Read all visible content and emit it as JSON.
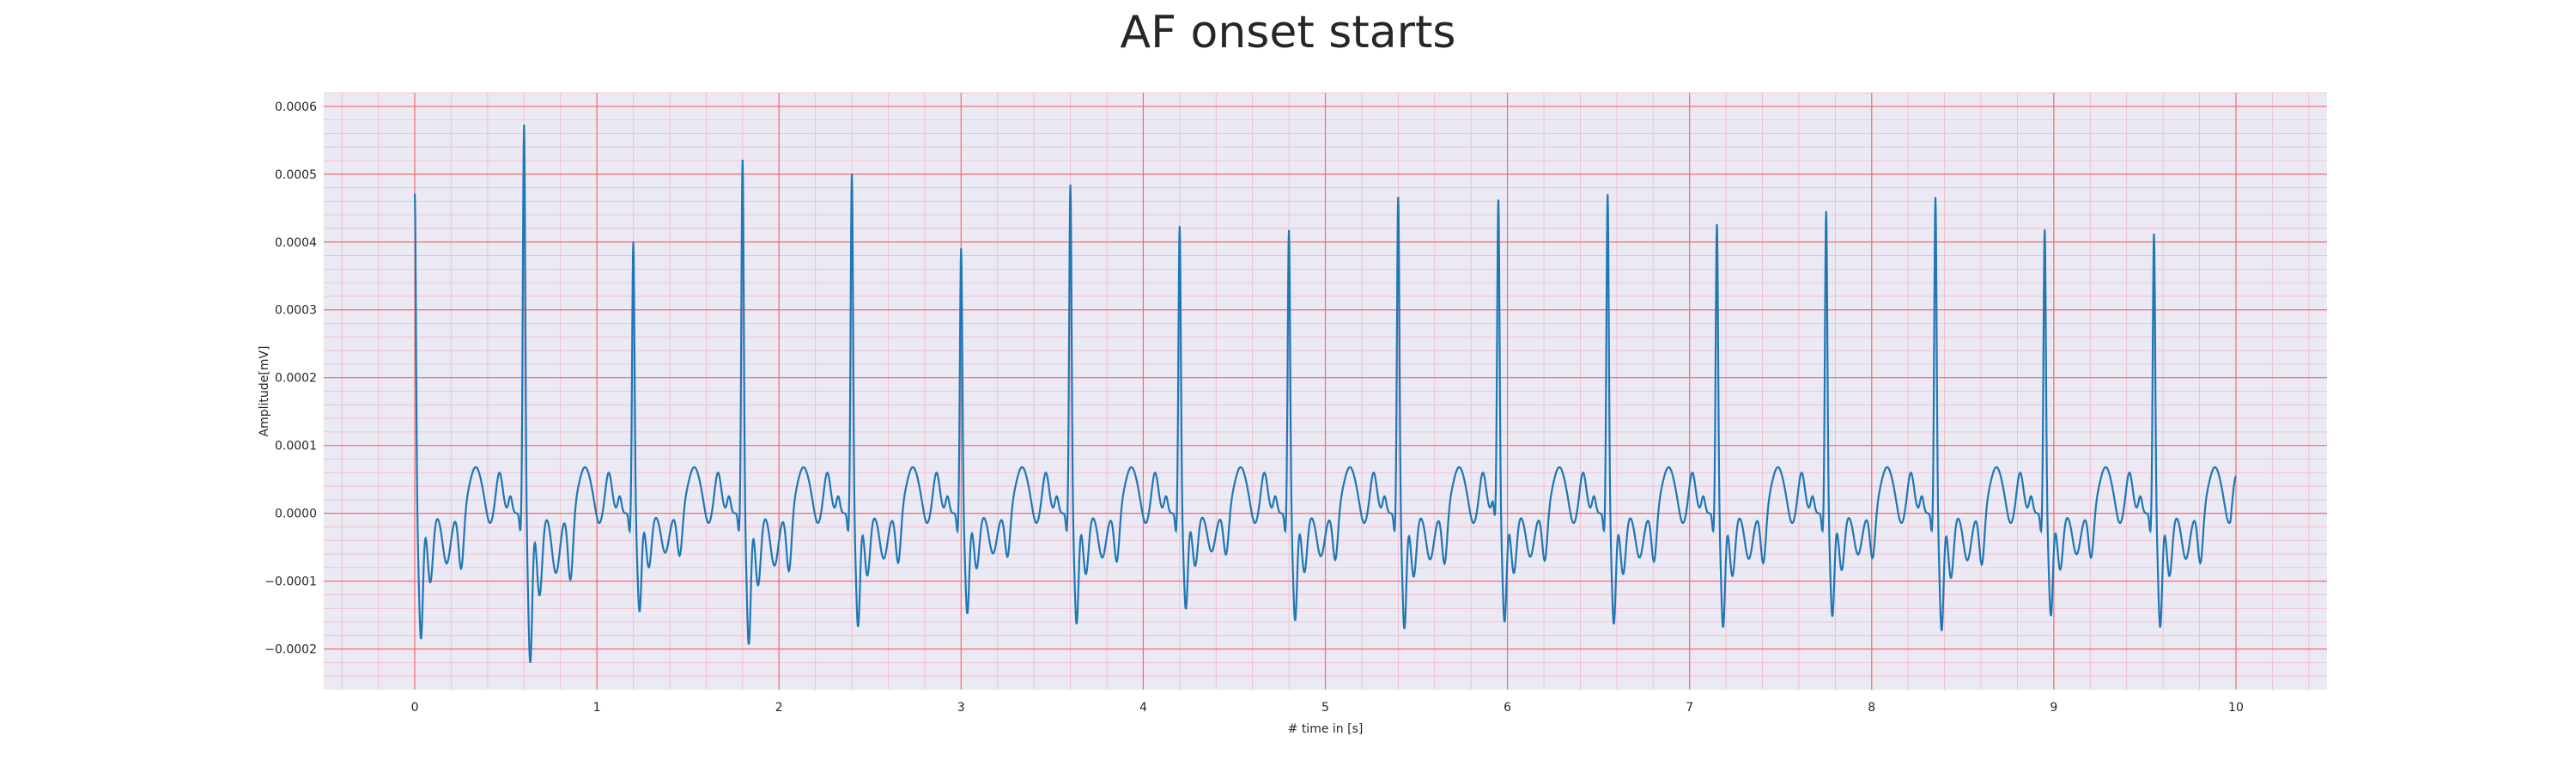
{
  "chart_data": {
    "type": "line",
    "title": "AF onset starts",
    "xlabel": "# time in [s]",
    "ylabel": "Amplitude[mV]",
    "xlim": [
      -0.5,
      10.5
    ],
    "ylim": [
      -0.00026,
      0.00062
    ],
    "x_ticks": [
      0,
      1,
      2,
      3,
      4,
      5,
      6,
      7,
      8,
      9,
      10
    ],
    "x_tick_labels": [
      "0",
      "1",
      "2",
      "3",
      "4",
      "5",
      "6",
      "7",
      "8",
      "9",
      "10"
    ],
    "y_ticks": [
      -0.0002,
      -0.0001,
      0.0,
      0.0001,
      0.0002,
      0.0003,
      0.0004,
      0.0005,
      0.0006
    ],
    "y_tick_labels": [
      "−0.0002",
      "−0.0001",
      "0.0000",
      "0.0001",
      "0.0002",
      "0.0003",
      "0.0004",
      "0.0005",
      "0.0006"
    ],
    "grid": true,
    "background_color": "#ebe9f4",
    "major_grid_color": "#f26d6d",
    "minor_grid_color": "#f2b9c6",
    "series": [
      {
        "color": "#1f77b4",
        "beats": [
          {
            "t": 0.0,
            "peak": 0.000473,
            "trough": -0.000185
          },
          {
            "t": 0.6,
            "peak": 0.000575,
            "trough": -0.00022
          },
          {
            "t": 1.2,
            "peak": 0.000402,
            "trough": -0.000145
          },
          {
            "t": 1.8,
            "peak": 0.000523,
            "trough": -0.000193
          },
          {
            "t": 2.4,
            "peak": 0.000502,
            "trough": -0.000167
          },
          {
            "t": 3.0,
            "peak": 0.000392,
            "trough": -0.000148
          },
          {
            "t": 3.6,
            "peak": 0.000486,
            "trough": -0.000163
          },
          {
            "t": 4.2,
            "peak": 0.000425,
            "trough": -0.000141
          },
          {
            "t": 4.8,
            "peak": 0.000419,
            "trough": -0.000158
          },
          {
            "t": 5.4,
            "peak": 0.000468,
            "trough": -0.00017
          },
          {
            "t": 5.95,
            "peak": 0.000463,
            "trough": -0.00016
          },
          {
            "t": 6.55,
            "peak": 0.000472,
            "trough": -0.000163
          },
          {
            "t": 7.15,
            "peak": 0.000428,
            "trough": -0.000168
          },
          {
            "t": 7.75,
            "peak": 0.000447,
            "trough": -0.000152
          },
          {
            "t": 8.35,
            "peak": 0.000468,
            "trough": -0.000173
          },
          {
            "t": 8.95,
            "peak": 0.00042,
            "trough": -0.000151
          },
          {
            "t": 9.55,
            "peak": 0.000414,
            "trough": -0.000168
          }
        ],
        "end_t": 10.0,
        "end_value": 5.5e-05
      }
    ]
  }
}
